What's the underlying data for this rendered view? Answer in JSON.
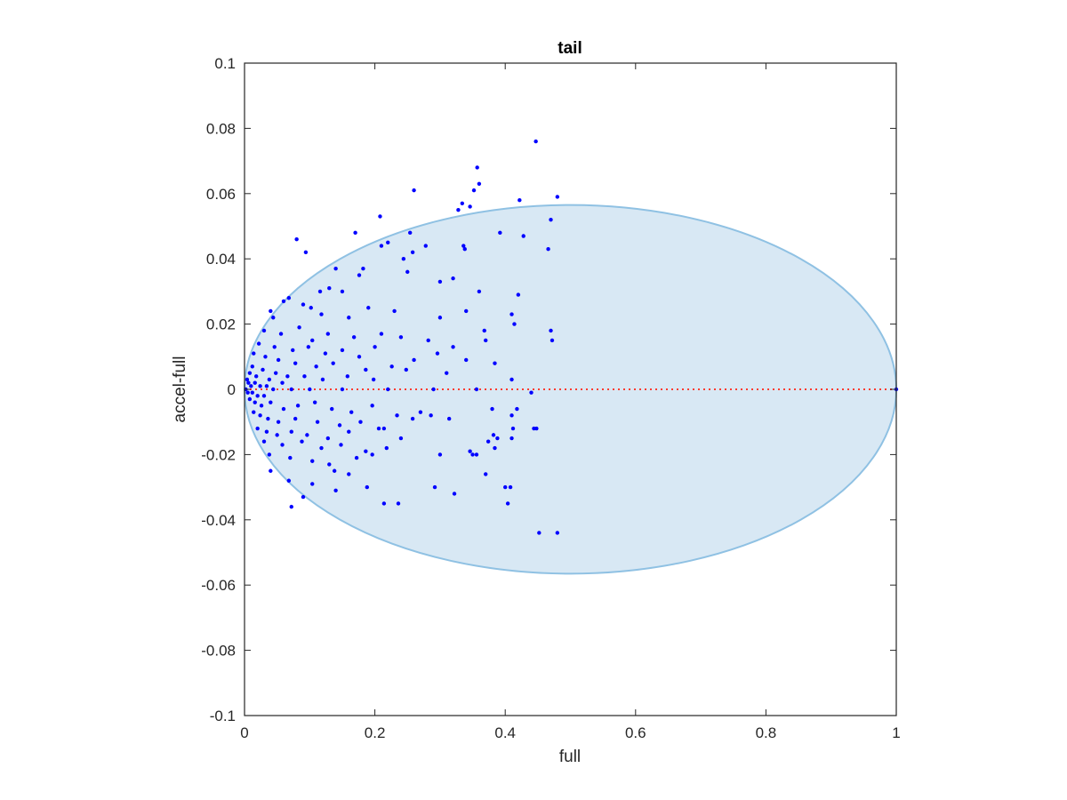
{
  "chart_data": {
    "type": "scatter",
    "title": "tail",
    "xlabel": "full",
    "ylabel": "accel-full",
    "xlim": [
      0,
      1
    ],
    "ylim": [
      -0.1,
      0.1
    ],
    "xticks": [
      "0",
      "0.2",
      "0.4",
      "0.6",
      "0.8",
      "1"
    ],
    "yticks": [
      "0.1",
      "0.08",
      "0.06",
      "0.04",
      "0.02",
      "0",
      "-0.02",
      "-0.04",
      "-0.06",
      "-0.08",
      "-0.1"
    ],
    "grid": false,
    "colors": {
      "points": "#0000ff",
      "reference_line": "#ff3b30",
      "ellipse_fill": "#d8e8f4",
      "ellipse_stroke": "#8fc1e3",
      "axes": "#262626"
    },
    "reference_line": {
      "y": 0,
      "style": "dotted"
    },
    "ellipse": {
      "cx": 0.5,
      "cy": 0,
      "rx": 0.5,
      "ry": 0.0565
    },
    "series": [
      {
        "points": [
          [
            0.447,
            0.076
          ],
          [
            0.357,
            0.068
          ],
          [
            0.36,
            0.063
          ],
          [
            0.352,
            0.061
          ],
          [
            0.26,
            0.061
          ],
          [
            0.422,
            0.058
          ],
          [
            0.48,
            0.059
          ],
          [
            0.334,
            0.057
          ],
          [
            0.328,
            0.055
          ],
          [
            0.346,
            0.056
          ],
          [
            0.208,
            0.053
          ],
          [
            0.47,
            0.052
          ],
          [
            0.392,
            0.048
          ],
          [
            0.17,
            0.048
          ],
          [
            0.254,
            0.048
          ],
          [
            0.08,
            0.046
          ],
          [
            0.428,
            0.047
          ],
          [
            0.466,
            0.043
          ],
          [
            0.22,
            0.045
          ],
          [
            0.21,
            0.044
          ],
          [
            0.278,
            0.044
          ],
          [
            0.336,
            0.044
          ],
          [
            0.338,
            0.043
          ],
          [
            0.094,
            0.042
          ],
          [
            0.258,
            0.042
          ],
          [
            0.244,
            0.04
          ],
          [
            0.182,
            0.037
          ],
          [
            0.14,
            0.037
          ],
          [
            0.25,
            0.036
          ],
          [
            0.176,
            0.035
          ],
          [
            0.32,
            0.034
          ],
          [
            0.3,
            0.033
          ],
          [
            0.42,
            0.029
          ],
          [
            0.36,
            0.03
          ],
          [
            0.15,
            0.03
          ],
          [
            0.116,
            0.03
          ],
          [
            0.13,
            0.031
          ],
          [
            0.068,
            0.028
          ],
          [
            0.06,
            0.027
          ],
          [
            0.04,
            0.024
          ],
          [
            0.09,
            0.026
          ],
          [
            0.102,
            0.025
          ],
          [
            0.044,
            0.022
          ],
          [
            0.118,
            0.023
          ],
          [
            0.16,
            0.022
          ],
          [
            0.19,
            0.025
          ],
          [
            0.23,
            0.024
          ],
          [
            0.3,
            0.022
          ],
          [
            0.34,
            0.024
          ],
          [
            0.368,
            0.018
          ],
          [
            0.41,
            0.023
          ],
          [
            0.47,
            0.018
          ],
          [
            0.472,
            0.015
          ],
          [
            0.414,
            0.02
          ],
          [
            0.03,
            0.018
          ],
          [
            0.056,
            0.017
          ],
          [
            0.084,
            0.019
          ],
          [
            0.104,
            0.015
          ],
          [
            0.128,
            0.017
          ],
          [
            0.168,
            0.016
          ],
          [
            0.21,
            0.017
          ],
          [
            0.24,
            0.016
          ],
          [
            0.282,
            0.015
          ],
          [
            0.32,
            0.013
          ],
          [
            0.37,
            0.015
          ],
          [
            0.022,
            0.014
          ],
          [
            0.046,
            0.013
          ],
          [
            0.074,
            0.012
          ],
          [
            0.098,
            0.013
          ],
          [
            0.124,
            0.011
          ],
          [
            0.15,
            0.012
          ],
          [
            0.176,
            0.01
          ],
          [
            0.2,
            0.013
          ],
          [
            0.26,
            0.009
          ],
          [
            0.296,
            0.011
          ],
          [
            0.34,
            0.009
          ],
          [
            0.384,
            0.008
          ],
          [
            0.014,
            0.011
          ],
          [
            0.032,
            0.01
          ],
          [
            0.052,
            0.009
          ],
          [
            0.078,
            0.008
          ],
          [
            0.11,
            0.007
          ],
          [
            0.136,
            0.008
          ],
          [
            0.186,
            0.006
          ],
          [
            0.226,
            0.007
          ],
          [
            0.248,
            0.006
          ],
          [
            0.31,
            0.005
          ],
          [
            0.012,
            0.007
          ],
          [
            0.028,
            0.006
          ],
          [
            0.048,
            0.005
          ],
          [
            0.066,
            0.004
          ],
          [
            0.092,
            0.004
          ],
          [
            0.12,
            0.003
          ],
          [
            0.158,
            0.004
          ],
          [
            0.198,
            0.003
          ],
          [
            0.41,
            0.003
          ],
          [
            0.008,
            0.005
          ],
          [
            0.018,
            0.004
          ],
          [
            0.038,
            0.003
          ],
          [
            0.058,
            0.002
          ],
          [
            0.004,
            0.003
          ],
          [
            0.006,
            0.002
          ],
          [
            0.01,
            0.001
          ],
          [
            0.016,
            0.002
          ],
          [
            0.024,
            0.001
          ],
          [
            0.034,
            0.001
          ],
          [
            0.044,
            0.0
          ],
          [
            0.002,
            0.0
          ],
          [
            0.005,
            -0.001
          ],
          [
            0.012,
            -0.001
          ],
          [
            0.02,
            -0.002
          ],
          [
            0.03,
            -0.002
          ],
          [
            0.072,
            0.0
          ],
          [
            0.1,
            0.0
          ],
          [
            0.15,
            0.0
          ],
          [
            0.22,
            0.0
          ],
          [
            0.29,
            0.0
          ],
          [
            0.356,
            0.0
          ],
          [
            0.44,
            -0.001
          ],
          [
            1.0,
            0.0
          ],
          [
            0.008,
            -0.003
          ],
          [
            0.016,
            -0.004
          ],
          [
            0.026,
            -0.005
          ],
          [
            0.04,
            -0.004
          ],
          [
            0.06,
            -0.006
          ],
          [
            0.082,
            -0.005
          ],
          [
            0.108,
            -0.004
          ],
          [
            0.134,
            -0.006
          ],
          [
            0.164,
            -0.007
          ],
          [
            0.196,
            -0.005
          ],
          [
            0.234,
            -0.008
          ],
          [
            0.27,
            -0.007
          ],
          [
            0.314,
            -0.009
          ],
          [
            0.38,
            -0.006
          ],
          [
            0.014,
            -0.007
          ],
          [
            0.024,
            -0.008
          ],
          [
            0.036,
            -0.009
          ],
          [
            0.052,
            -0.01
          ],
          [
            0.078,
            -0.009
          ],
          [
            0.112,
            -0.01
          ],
          [
            0.146,
            -0.011
          ],
          [
            0.178,
            -0.01
          ],
          [
            0.214,
            -0.012
          ],
          [
            0.258,
            -0.009
          ],
          [
            0.286,
            -0.008
          ],
          [
            0.41,
            -0.008
          ],
          [
            0.02,
            -0.012
          ],
          [
            0.034,
            -0.013
          ],
          [
            0.05,
            -0.014
          ],
          [
            0.072,
            -0.013
          ],
          [
            0.096,
            -0.014
          ],
          [
            0.128,
            -0.015
          ],
          [
            0.16,
            -0.013
          ],
          [
            0.206,
            -0.012
          ],
          [
            0.24,
            -0.015
          ],
          [
            0.374,
            -0.016
          ],
          [
            0.444,
            -0.012
          ],
          [
            0.03,
            -0.016
          ],
          [
            0.058,
            -0.017
          ],
          [
            0.088,
            -0.016
          ],
          [
            0.118,
            -0.018
          ],
          [
            0.148,
            -0.017
          ],
          [
            0.186,
            -0.019
          ],
          [
            0.218,
            -0.018
          ],
          [
            0.3,
            -0.02
          ],
          [
            0.346,
            -0.019
          ],
          [
            0.35,
            -0.02
          ],
          [
            0.356,
            -0.02
          ],
          [
            0.448,
            -0.012
          ],
          [
            0.038,
            -0.02
          ],
          [
            0.07,
            -0.021
          ],
          [
            0.104,
            -0.022
          ],
          [
            0.13,
            -0.023
          ],
          [
            0.172,
            -0.021
          ],
          [
            0.196,
            -0.02
          ],
          [
            0.068,
            -0.028
          ],
          [
            0.104,
            -0.029
          ],
          [
            0.14,
            -0.031
          ],
          [
            0.138,
            -0.025
          ],
          [
            0.37,
            -0.026
          ],
          [
            0.292,
            -0.03
          ],
          [
            0.322,
            -0.032
          ],
          [
            0.4,
            -0.03
          ],
          [
            0.408,
            -0.03
          ],
          [
            0.09,
            -0.033
          ],
          [
            0.072,
            -0.036
          ],
          [
            0.214,
            -0.035
          ],
          [
            0.236,
            -0.035
          ],
          [
            0.404,
            -0.035
          ],
          [
            0.452,
            -0.044
          ],
          [
            0.48,
            -0.044
          ],
          [
            0.41,
            -0.015
          ],
          [
            0.388,
            -0.015
          ],
          [
            0.384,
            -0.018
          ],
          [
            0.382,
            -0.014
          ],
          [
            0.418,
            -0.006
          ],
          [
            0.412,
            -0.012
          ],
          [
            0.04,
            -0.025
          ],
          [
            0.16,
            -0.026
          ],
          [
            0.188,
            -0.03
          ]
        ]
      }
    ]
  }
}
